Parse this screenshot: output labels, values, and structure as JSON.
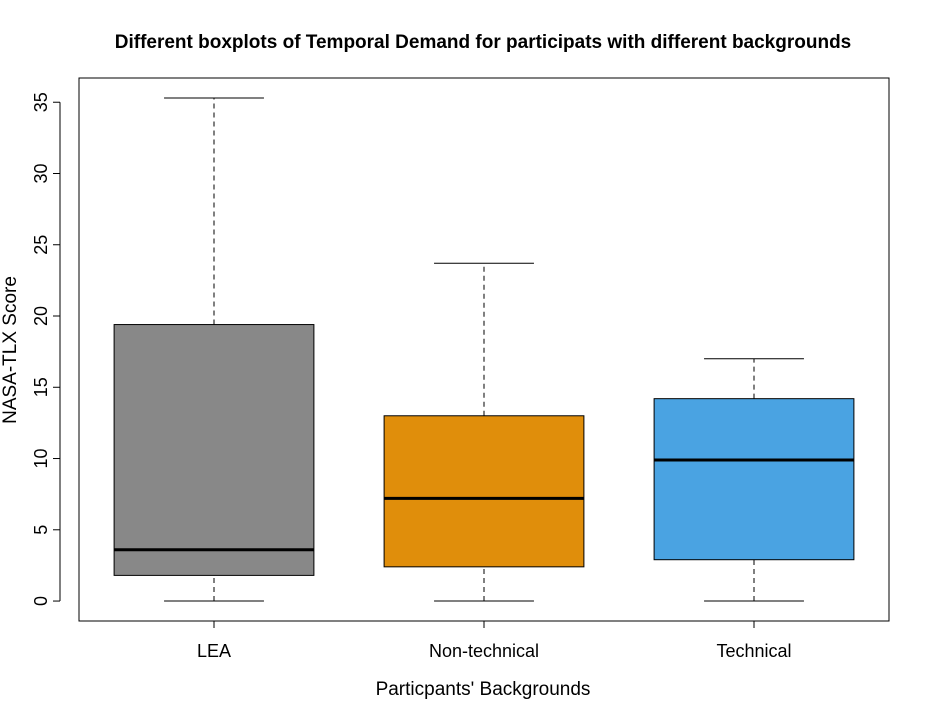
{
  "chart_data": {
    "type": "boxplot",
    "title": "Different boxplots of Temporal Demand for participats with different backgrounds",
    "xlabel": "Particpants' Backgrounds",
    "ylabel": "NASA-TLX Score",
    "ylim": [
      -1.4,
      36.7
    ],
    "yticks": [
      "0",
      "5",
      "10",
      "15",
      "20",
      "25",
      "30",
      "35"
    ],
    "grid": false,
    "categories": [
      "LEA",
      "Non-technical",
      "Technical"
    ],
    "boxes": [
      {
        "name": "LEA",
        "min": 0,
        "q1": 1.8,
        "median": 3.6,
        "q3": 19.4,
        "max": 35.3,
        "color": "#888888"
      },
      {
        "name": "Non-technical",
        "min": 0,
        "q1": 2.4,
        "median": 7.2,
        "q3": 13.0,
        "max": 23.7,
        "color": "#E08E0B"
      },
      {
        "name": "Technical",
        "min": 0,
        "q1": 2.9,
        "median": 9.9,
        "q3": 14.2,
        "max": 17.0,
        "color": "#4AA3E2"
      }
    ]
  }
}
